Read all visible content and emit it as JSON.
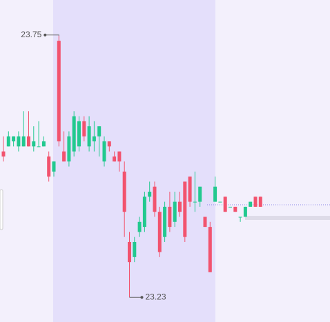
{
  "chart_data": {
    "type": "candlestick",
    "ylim": [
      23.181,
      23.821
    ],
    "up_color": "#22c98f",
    "down_color": "#f2536e",
    "series": [
      {
        "open": [
          23.52,
          23.53,
          23.54,
          23.53,
          23.53,
          23.55,
          23.53,
          23.53,
          23.53,
          23.51,
          23.48,
          23.74,
          23.52,
          23.5,
          23.52,
          23.53,
          23.58,
          23.53,
          23.54,
          23.55,
          23.5,
          23.54,
          23.51,
          23.52,
          23.48,
          23.34,
          23.31,
          23.36,
          23.37,
          23.43,
          23.45,
          23.4,
          23.35,
          23.41,
          23.38,
          23.42,
          23.46,
          23.47,
          23.42,
          23.42,
          23.39,
          23.37,
          23.42,
          23.42,
          23.43,
          23.41,
          23.41,
          23.39,
          23.39,
          23.41,
          23.43,
          23.43
        ],
        "high": [
          23.55,
          23.56,
          23.55,
          23.56,
          23.6,
          23.6,
          23.57,
          23.58,
          23.55,
          23.52,
          23.5,
          23.75,
          23.56,
          23.56,
          23.6,
          23.59,
          23.59,
          23.59,
          23.58,
          23.57,
          23.55,
          23.54,
          23.52,
          23.52,
          23.5,
          23.36,
          23.35,
          23.39,
          23.44,
          23.46,
          23.46,
          23.41,
          23.42,
          23.44,
          23.44,
          23.44,
          23.46,
          23.47,
          23.48,
          23.45,
          23.39,
          23.38,
          23.47,
          23.42,
          23.43,
          23.41,
          23.41,
          23.39,
          23.41,
          23.42,
          23.43,
          23.43
        ],
        "low": [
          23.5,
          23.53,
          23.53,
          23.52,
          23.53,
          23.53,
          23.52,
          23.53,
          23.53,
          23.46,
          23.47,
          23.53,
          23.5,
          23.49,
          23.51,
          23.52,
          23.54,
          23.52,
          23.52,
          23.51,
          23.49,
          23.52,
          23.5,
          23.48,
          23.35,
          23.23,
          23.3,
          23.35,
          23.36,
          23.42,
          23.39,
          23.31,
          23.34,
          23.36,
          23.37,
          23.39,
          23.34,
          23.41,
          23.4,
          23.41,
          23.37,
          23.28,
          23.42,
          23.42,
          23.4,
          23.41,
          23.4,
          23.38,
          23.39,
          23.41,
          23.41,
          23.41
        ],
        "close": [
          23.51,
          23.55,
          23.55,
          23.55,
          23.55,
          23.53,
          23.54,
          23.53,
          23.54,
          23.47,
          23.5,
          23.54,
          23.5,
          23.55,
          23.59,
          23.58,
          23.55,
          23.57,
          23.55,
          23.57,
          23.54,
          23.53,
          23.5,
          23.5,
          23.4,
          23.3,
          23.34,
          23.38,
          23.43,
          23.44,
          23.4,
          23.32,
          23.41,
          23.37,
          23.42,
          23.4,
          23.35,
          23.42,
          23.42,
          23.45,
          23.37,
          23.28,
          23.45,
          23.42,
          23.4,
          23.41,
          23.4,
          23.39,
          23.41,
          23.42,
          23.41,
          23.41
        ]
      }
    ],
    "annotations": [
      {
        "text": "23.75",
        "candle": 11,
        "at": "high"
      },
      {
        "text": "23.23",
        "candle": 25,
        "at": "low"
      }
    ]
  }
}
